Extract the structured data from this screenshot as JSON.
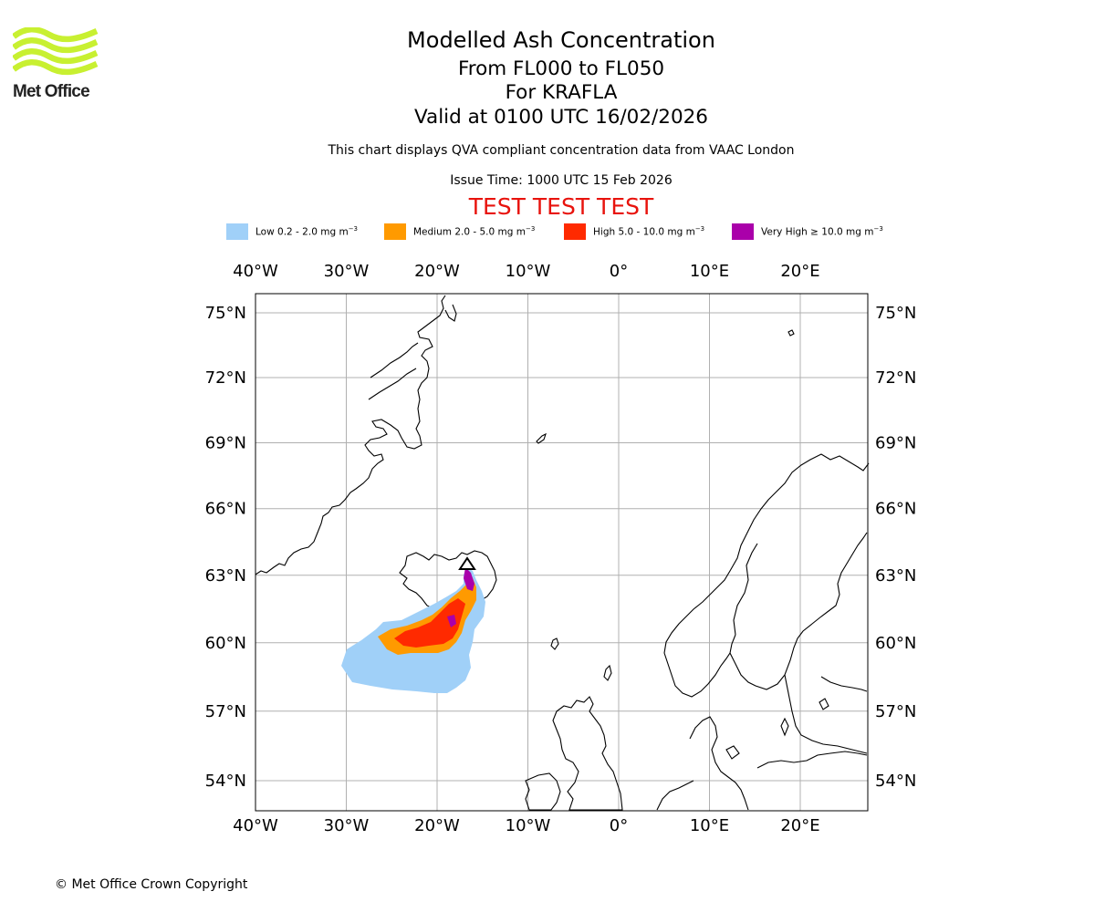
{
  "logo": {
    "text": "Met Office",
    "color": "#c8f031"
  },
  "header": {
    "title": "Modelled Ash Concentration",
    "level_range": "From FL000 to FL050",
    "volcano": "For KRAFLA",
    "valid": "Valid at 0100 UTC 16/02/2026",
    "description": "This chart displays QVA compliant concentration data from VAAC London",
    "issue_time": "Issue Time: 1000 UTC 15 Feb 2026",
    "test_banner": "TEST TEST TEST"
  },
  "legend": [
    {
      "label": "Low 0.2 - 2.0 mg m",
      "exp": "−3",
      "color": "#a0d0f8"
    },
    {
      "label": "Medium 2.0 - 5.0 mg m",
      "exp": "−3",
      "color": "#ff9a00"
    },
    {
      "label": "High 5.0 - 10.0 mg m",
      "exp": "−3",
      "color": "#ff2a00"
    },
    {
      "label": "Very High  ≥  10.0 mg m",
      "exp": "−3",
      "color": "#aa00aa"
    }
  ],
  "map": {
    "lon_ticks": [
      "40°W",
      "30°W",
      "20°W",
      "10°W",
      "0°",
      "10°E",
      "20°E"
    ],
    "lat_ticks": [
      "75°N",
      "72°N",
      "69°N",
      "66°N",
      "63°N",
      "60°N",
      "57°N",
      "54°N"
    ],
    "lon_values": [
      -40,
      -30,
      -20,
      -10,
      0,
      10,
      20
    ],
    "lat_values": [
      75,
      72,
      69,
      66,
      63,
      60,
      57,
      54
    ]
  },
  "footer": {
    "copyright": "© Met Office Crown Copyright"
  }
}
